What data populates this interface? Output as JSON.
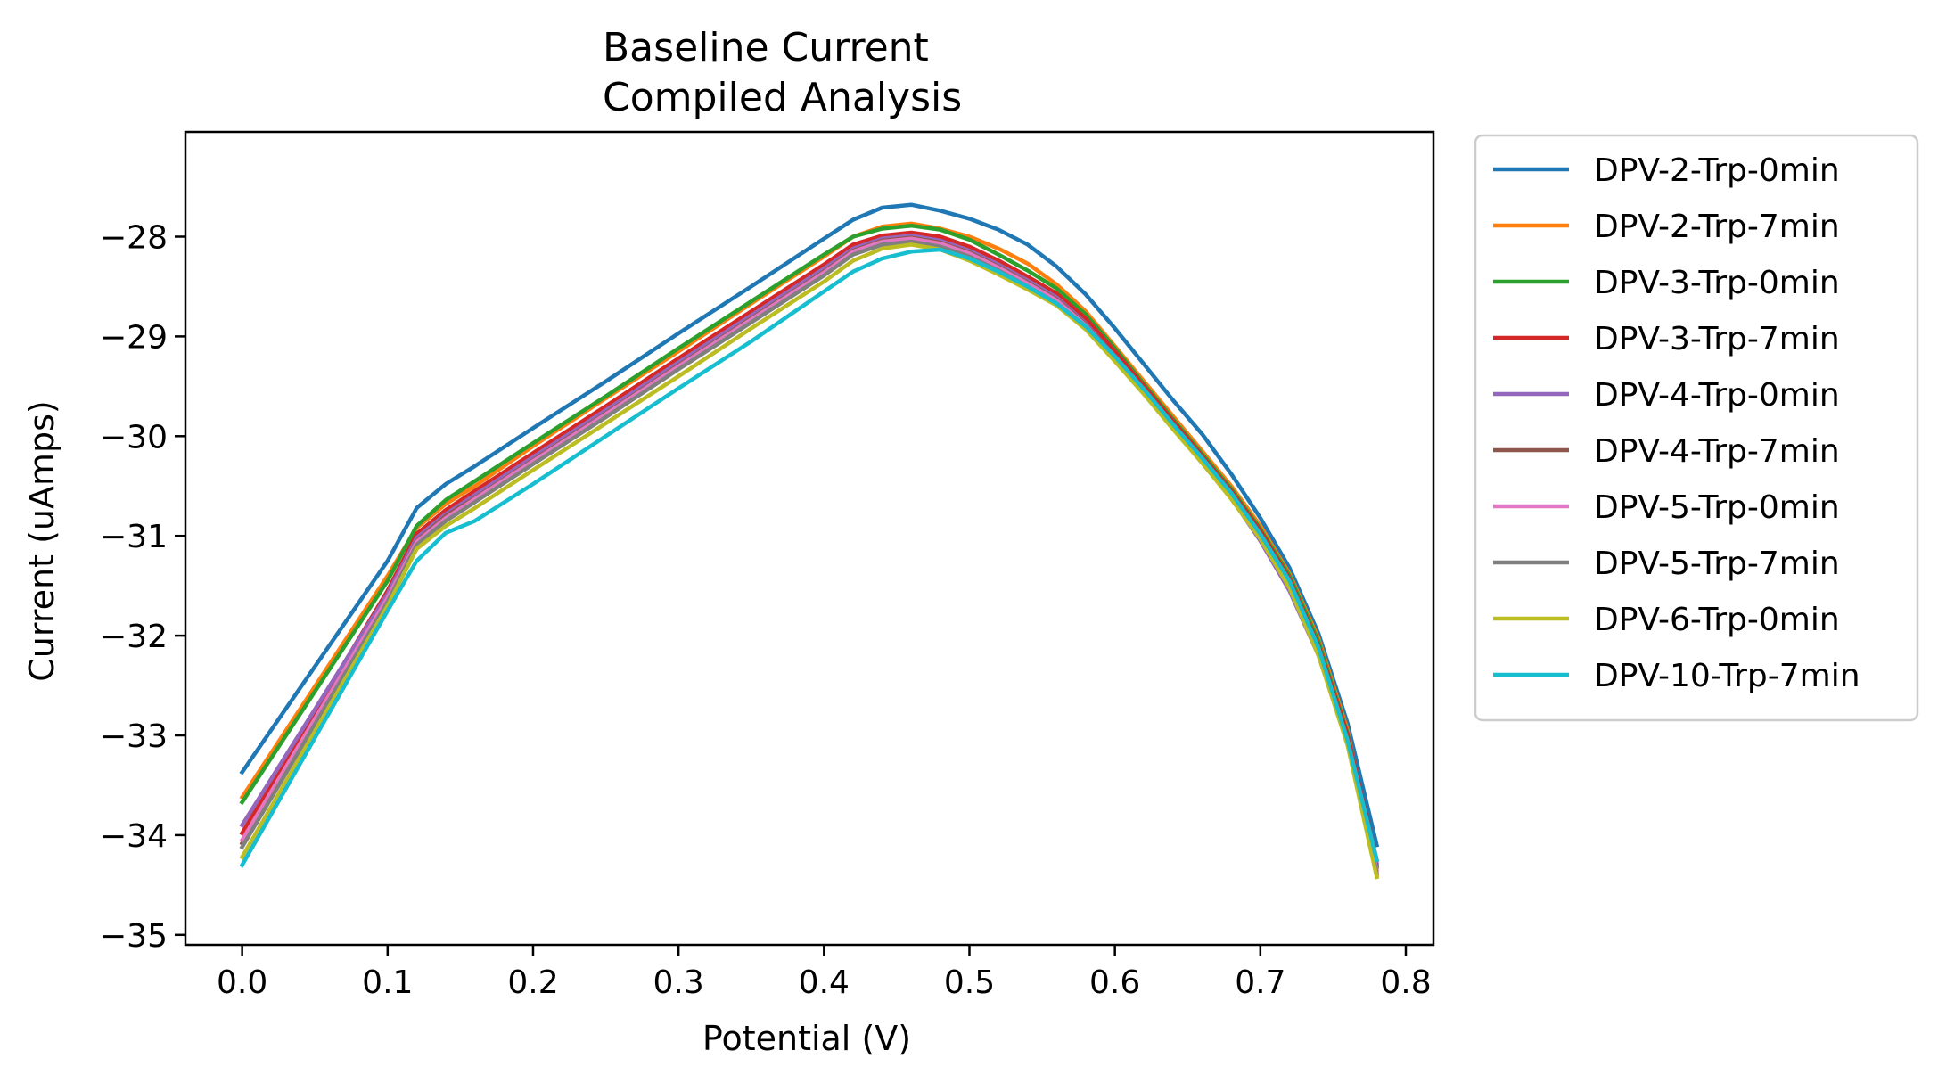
{
  "chart_data": {
    "type": "line",
    "title_lines": [
      "Baseline Current",
      "Compiled Analysis"
    ],
    "xlabel": "Potential (V)",
    "ylabel": "Current (uAmps)",
    "xlim": [
      -0.039,
      0.819
    ],
    "ylim": [
      -35.1,
      -26.95
    ],
    "x_ticks": [
      0.0,
      0.1,
      0.2,
      0.3,
      0.4,
      0.5,
      0.6,
      0.7,
      0.8
    ],
    "x_tick_labels": [
      "0.0",
      "0.1",
      "0.2",
      "0.3",
      "0.4",
      "0.5",
      "0.6",
      "0.7",
      "0.8"
    ],
    "y_ticks": [
      -28,
      -29,
      -30,
      -31,
      -32,
      -33,
      -34,
      -35
    ],
    "y_tick_labels": [
      "−28",
      "−29",
      "−30",
      "−31",
      "−32",
      "−33",
      "−34",
      "−35"
    ],
    "grid": false,
    "legend_position": "outside right, top",
    "x": [
      0.0,
      0.1,
      0.12,
      0.14,
      0.16,
      0.2,
      0.25,
      0.3,
      0.35,
      0.4,
      0.42,
      0.44,
      0.46,
      0.48,
      0.5,
      0.52,
      0.54,
      0.56,
      0.58,
      0.6,
      0.62,
      0.64,
      0.66,
      0.68,
      0.7,
      0.72,
      0.74,
      0.76,
      0.78
    ],
    "series": [
      {
        "name": "DPV-2-Trp-0min",
        "color": "#1f77b4",
        "values": [
          -33.37,
          -31.25,
          -30.72,
          -30.48,
          -30.3,
          -29.92,
          -29.45,
          -28.97,
          -28.5,
          -28.02,
          -27.83,
          -27.71,
          -27.68,
          -27.74,
          -27.82,
          -27.93,
          -28.08,
          -28.3,
          -28.58,
          -28.92,
          -29.28,
          -29.64,
          -29.98,
          -30.38,
          -30.82,
          -31.32,
          -31.98,
          -32.88,
          -34.1
        ]
      },
      {
        "name": "DPV-2-Trp-7min",
        "color": "#ff7f0e",
        "values": [
          -33.62,
          -31.4,
          -30.92,
          -30.68,
          -30.5,
          -30.1,
          -29.62,
          -29.15,
          -28.67,
          -28.2,
          -28.0,
          -27.9,
          -27.87,
          -27.92,
          -28.0,
          -28.12,
          -28.27,
          -28.48,
          -28.75,
          -29.1,
          -29.45,
          -29.8,
          -30.15,
          -30.5,
          -30.9,
          -31.38,
          -32.03,
          -32.95,
          -34.4
        ]
      },
      {
        "name": "DPV-3-Trp-0min",
        "color": "#2ca02c",
        "values": [
          -33.67,
          -31.45,
          -30.9,
          -30.64,
          -30.45,
          -30.07,
          -29.6,
          -29.12,
          -28.65,
          -28.18,
          -28.0,
          -27.92,
          -27.89,
          -27.93,
          -28.03,
          -28.18,
          -28.34,
          -28.52,
          -28.78,
          -29.12,
          -29.48,
          -29.83,
          -30.18,
          -30.53,
          -30.93,
          -31.4,
          -32.06,
          -32.98,
          -34.3
        ]
      },
      {
        "name": "DPV-3-Trp-7min",
        "color": "#d62728",
        "values": [
          -33.98,
          -31.55,
          -30.98,
          -30.74,
          -30.55,
          -30.17,
          -29.7,
          -29.22,
          -28.75,
          -28.28,
          -28.08,
          -27.99,
          -27.96,
          -28.0,
          -28.1,
          -28.24,
          -28.4,
          -28.57,
          -28.82,
          -29.15,
          -29.5,
          -29.85,
          -30.2,
          -30.55,
          -30.95,
          -31.43,
          -32.1,
          -33.0,
          -34.25
        ]
      },
      {
        "name": "DPV-4-Trp-0min",
        "color": "#9467bd",
        "values": [
          -33.9,
          -31.58,
          -31.02,
          -30.78,
          -30.59,
          -30.21,
          -29.74,
          -29.26,
          -28.79,
          -28.32,
          -28.12,
          -28.02,
          -27.99,
          -28.04,
          -28.14,
          -28.28,
          -28.44,
          -28.61,
          -28.87,
          -29.2,
          -29.55,
          -29.9,
          -30.25,
          -30.62,
          -31.05,
          -31.55,
          -32.2,
          -33.05,
          -34.28
        ]
      },
      {
        "name": "DPV-4-Trp-7min",
        "color": "#8c564b",
        "values": [
          -34.08,
          -31.62,
          -31.05,
          -30.8,
          -30.62,
          -30.24,
          -29.77,
          -29.29,
          -28.82,
          -28.35,
          -28.14,
          -28.04,
          -28.01,
          -28.06,
          -28.16,
          -28.3,
          -28.46,
          -28.63,
          -28.88,
          -29.2,
          -29.55,
          -29.9,
          -30.25,
          -30.6,
          -31.0,
          -31.48,
          -32.14,
          -33.05,
          -34.32
        ]
      },
      {
        "name": "DPV-5-Trp-0min",
        "color": "#e377c2",
        "values": [
          -34.05,
          -31.62,
          -31.06,
          -30.82,
          -30.63,
          -30.25,
          -29.78,
          -29.3,
          -28.83,
          -28.36,
          -28.15,
          -28.05,
          -28.02,
          -28.07,
          -28.17,
          -28.31,
          -28.47,
          -28.64,
          -28.89,
          -29.21,
          -29.56,
          -29.91,
          -30.26,
          -30.61,
          -31.01,
          -31.49,
          -32.15,
          -33.06,
          -34.35
        ]
      },
      {
        "name": "DPV-5-Trp-7min",
        "color": "#7f7f7f",
        "values": [
          -34.12,
          -31.66,
          -31.09,
          -30.85,
          -30.66,
          -30.28,
          -29.81,
          -29.33,
          -28.86,
          -28.39,
          -28.18,
          -28.08,
          -28.05,
          -28.1,
          -28.2,
          -28.34,
          -28.5,
          -28.67,
          -28.91,
          -29.23,
          -29.57,
          -29.92,
          -30.27,
          -30.62,
          -31.02,
          -31.5,
          -32.16,
          -33.07,
          -34.38
        ]
      },
      {
        "name": "DPV-6-Trp-0min",
        "color": "#bcbd22",
        "values": [
          -34.22,
          -31.7,
          -31.13,
          -30.9,
          -30.72,
          -30.34,
          -29.87,
          -29.4,
          -28.92,
          -28.45,
          -28.24,
          -28.12,
          -28.08,
          -28.13,
          -28.24,
          -28.38,
          -28.53,
          -28.69,
          -28.93,
          -29.25,
          -29.58,
          -29.93,
          -30.27,
          -30.63,
          -31.03,
          -31.52,
          -32.2,
          -33.1,
          -34.42
        ]
      },
      {
        "name": "DPV-10-Trp-7min",
        "color": "#17becf",
        "values": [
          -34.3,
          -31.75,
          -31.25,
          -30.97,
          -30.85,
          -30.48,
          -30.0,
          -29.52,
          -29.05,
          -28.55,
          -28.35,
          -28.22,
          -28.15,
          -28.13,
          -28.22,
          -28.35,
          -28.5,
          -28.67,
          -28.9,
          -29.2,
          -29.53,
          -29.88,
          -30.22,
          -30.57,
          -30.98,
          -31.45,
          -32.12,
          -33.05,
          -34.25
        ]
      }
    ]
  }
}
